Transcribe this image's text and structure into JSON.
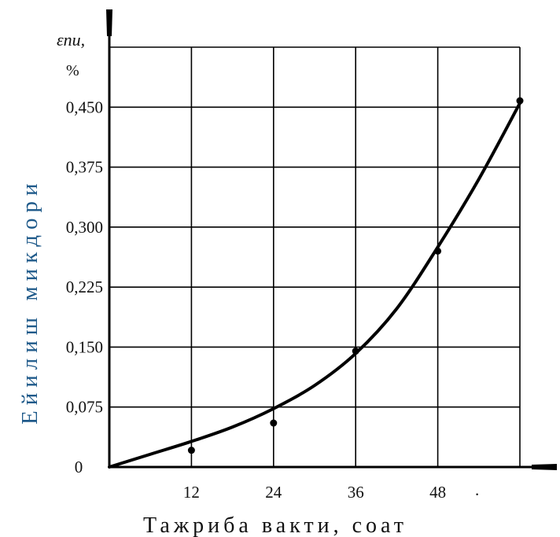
{
  "chart_data": {
    "type": "line",
    "ylabel_symbol": "εпи,",
    "ylabel_unit": "%",
    "ylabel": "Ейилиш  микдори",
    "xlabel": "Тажриба  вакти, соат",
    "xlim": [
      0,
      60
    ],
    "ylim": [
      0,
      0.525
    ],
    "grid": true,
    "x_ticks": [
      12,
      24,
      36,
      48
    ],
    "x_tick_labels": [
      "12",
      "24",
      "36",
      "48"
    ],
    "y_ticks": [
      0,
      0.075,
      0.15,
      0.225,
      0.3,
      0.375,
      0.45
    ],
    "y_tick_labels": [
      "0",
      "0,075",
      "0,150",
      "0,225",
      "0,300",
      "0,375",
      "0,450"
    ],
    "stray_mark": ".",
    "series": [
      {
        "points": [
          {
            "x": 12,
            "y": 0.021
          },
          {
            "x": 24,
            "y": 0.055
          },
          {
            "x": 36,
            "y": 0.145
          },
          {
            "x": 48,
            "y": 0.27
          },
          {
            "x": 60,
            "y": 0.458
          }
        ],
        "curve": [
          {
            "x": 0,
            "y": 0
          },
          {
            "x": 6,
            "y": 0.016
          },
          {
            "x": 12,
            "y": 0.032
          },
          {
            "x": 18,
            "y": 0.05
          },
          {
            "x": 24,
            "y": 0.073
          },
          {
            "x": 30,
            "y": 0.102
          },
          {
            "x": 36,
            "y": 0.142
          },
          {
            "x": 42,
            "y": 0.198
          },
          {
            "x": 48,
            "y": 0.275
          },
          {
            "x": 54,
            "y": 0.36
          },
          {
            "x": 60,
            "y": 0.455
          }
        ]
      }
    ],
    "colors": {
      "ylabel": "#1f5a8a",
      "ink": "#000000"
    }
  }
}
